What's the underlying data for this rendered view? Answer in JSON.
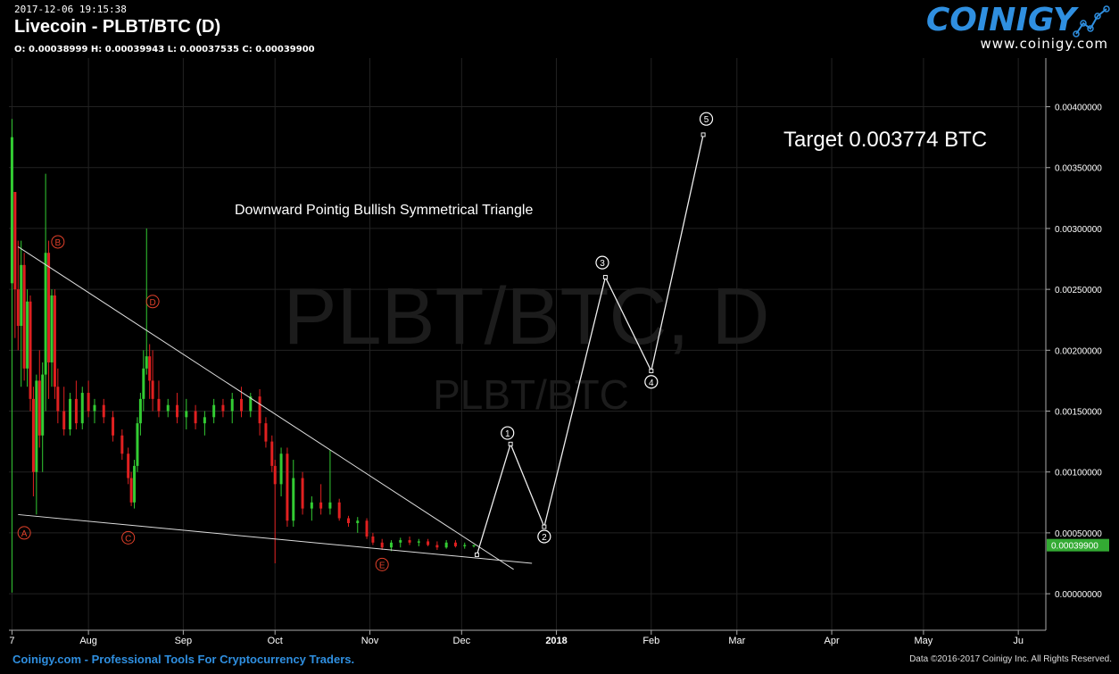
{
  "header": {
    "timestamp": "2017-12-06 19:15:38",
    "title": "Livecoin - PLBT/BTC (D)",
    "ohlc": "O: 0.00038999 H: 0.00039943 L: 0.00037535 C: 0.00039900"
  },
  "brand": {
    "name": "COINIGY",
    "url": "www.coinigy.com"
  },
  "watermark": {
    "large": "PLBT/BTC, D",
    "small": "PLBT/BTC"
  },
  "footer": {
    "left": "Coinigy.com - Professional Tools For Cryptocurrency Traders.",
    "right": "Data ©2016-2017 Coinigy Inc. All Rights Reserved."
  },
  "colors": {
    "background": "#000000",
    "up": "#33cc33",
    "down": "#e02020",
    "grid": "#222222",
    "annotation": "#ffffff",
    "wave_label": "#e0402a",
    "price_badge": "#33aa33",
    "brand": "#2f8fe0"
  },
  "chart_data": {
    "type": "candlestick",
    "title": "Downward Pointig Bullish Symmetrical Triangle",
    "target_label": "Target 0.003774 BTC",
    "current_price_label": "0.00039900",
    "x_ticks": [
      "7",
      "Aug",
      "Sep",
      "Oct",
      "Nov",
      "Dec",
      "2018",
      "Feb",
      "Mar",
      "Apr",
      "May",
      "Ju"
    ],
    "y_ticks": [
      "0.00400000",
      "0.00350000",
      "0.00300000",
      "0.00250000",
      "0.00200000",
      "0.00150000",
      "0.00100000",
      "0.00050000",
      "0.00000000"
    ],
    "ylim": [
      -0.0003,
      0.0044
    ],
    "xlim": [
      "2017-07-06",
      "2018-06-10"
    ],
    "candles": [
      {
        "date": "2017-07-07",
        "o": 0.00255,
        "h": 0.0039,
        "l": 1e-05,
        "c": 0.00375
      },
      {
        "date": "2017-07-08",
        "o": 0.0033,
        "h": 0.0033,
        "l": 0.0021,
        "c": 0.0025
      },
      {
        "date": "2017-07-09",
        "o": 0.0025,
        "h": 0.0029,
        "l": 0.002,
        "c": 0.0022
      },
      {
        "date": "2017-07-10",
        "o": 0.0022,
        "h": 0.0029,
        "l": 0.0017,
        "c": 0.0027
      },
      {
        "date": "2017-07-11",
        "o": 0.0027,
        "h": 0.0028,
        "l": 0.00175,
        "c": 0.00185
      },
      {
        "date": "2017-07-12",
        "o": 0.00185,
        "h": 0.0025,
        "l": 0.0017,
        "c": 0.0024
      },
      {
        "date": "2017-07-13",
        "o": 0.0024,
        "h": 0.00245,
        "l": 0.0015,
        "c": 0.0016
      },
      {
        "date": "2017-07-14",
        "o": 0.0016,
        "h": 0.0017,
        "l": 0.0008,
        "c": 0.001
      },
      {
        "date": "2017-07-15",
        "o": 0.001,
        "h": 0.0018,
        "l": 0.00065,
        "c": 0.00175
      },
      {
        "date": "2017-07-16",
        "o": 0.00175,
        "h": 0.002,
        "l": 0.0012,
        "c": 0.0013
      },
      {
        "date": "2017-07-17",
        "o": 0.0013,
        "h": 0.0019,
        "l": 0.001,
        "c": 0.0018
      },
      {
        "date": "2017-07-18",
        "o": 0.0018,
        "h": 0.00345,
        "l": 0.0015,
        "c": 0.0028
      },
      {
        "date": "2017-07-19",
        "o": 0.0028,
        "h": 0.0029,
        "l": 0.0016,
        "c": 0.0019
      },
      {
        "date": "2017-07-20",
        "o": 0.0019,
        "h": 0.0025,
        "l": 0.0017,
        "c": 0.00245
      },
      {
        "date": "2017-07-21",
        "o": 0.00245,
        "h": 0.0025,
        "l": 0.0016,
        "c": 0.0017
      },
      {
        "date": "2017-07-22",
        "o": 0.0017,
        "h": 0.00185,
        "l": 0.0014,
        "c": 0.0015
      },
      {
        "date": "2017-07-24",
        "o": 0.0015,
        "h": 0.0017,
        "l": 0.0013,
        "c": 0.00135
      },
      {
        "date": "2017-07-26",
        "o": 0.00135,
        "h": 0.00165,
        "l": 0.0013,
        "c": 0.0016
      },
      {
        "date": "2017-07-28",
        "o": 0.0016,
        "h": 0.00175,
        "l": 0.00135,
        "c": 0.0014
      },
      {
        "date": "2017-07-30",
        "o": 0.0014,
        "h": 0.0017,
        "l": 0.00135,
        "c": 0.00165
      },
      {
        "date": "2017-08-01",
        "o": 0.00165,
        "h": 0.00175,
        "l": 0.00145,
        "c": 0.0015
      },
      {
        "date": "2017-08-03",
        "o": 0.0015,
        "h": 0.0016,
        "l": 0.0014,
        "c": 0.00155
      },
      {
        "date": "2017-08-06",
        "o": 0.00155,
        "h": 0.0016,
        "l": 0.0014,
        "c": 0.00145
      },
      {
        "date": "2017-08-09",
        "o": 0.00145,
        "h": 0.0015,
        "l": 0.00125,
        "c": 0.0013
      },
      {
        "date": "2017-08-12",
        "o": 0.0013,
        "h": 0.00135,
        "l": 0.0011,
        "c": 0.00115
      },
      {
        "date": "2017-08-14",
        "o": 0.00115,
        "h": 0.0012,
        "l": 0.0009,
        "c": 0.00095
      },
      {
        "date": "2017-08-15",
        "o": 0.00095,
        "h": 0.001,
        "l": 0.00072,
        "c": 0.00075
      },
      {
        "date": "2017-08-16",
        "o": 0.00075,
        "h": 0.0011,
        "l": 0.0007,
        "c": 0.00105
      },
      {
        "date": "2017-08-17",
        "o": 0.00105,
        "h": 0.00145,
        "l": 0.001,
        "c": 0.0014
      },
      {
        "date": "2017-08-18",
        "o": 0.0014,
        "h": 0.00165,
        "l": 0.0013,
        "c": 0.0016
      },
      {
        "date": "2017-08-19",
        "o": 0.0016,
        "h": 0.002,
        "l": 0.0015,
        "c": 0.00185
      },
      {
        "date": "2017-08-20",
        "o": 0.00185,
        "h": 0.003,
        "l": 0.0018,
        "c": 0.00195
      },
      {
        "date": "2017-08-21",
        "o": 0.00195,
        "h": 0.00205,
        "l": 0.0016,
        "c": 0.00175
      },
      {
        "date": "2017-08-22",
        "o": 0.00175,
        "h": 0.002,
        "l": 0.0015,
        "c": 0.0016
      },
      {
        "date": "2017-08-24",
        "o": 0.0016,
        "h": 0.00175,
        "l": 0.00145,
        "c": 0.0015
      },
      {
        "date": "2017-08-27",
        "o": 0.0015,
        "h": 0.0016,
        "l": 0.00145,
        "c": 0.00155
      },
      {
        "date": "2017-08-30",
        "o": 0.00155,
        "h": 0.00165,
        "l": 0.0014,
        "c": 0.00145
      },
      {
        "date": "2017-09-02",
        "o": 0.00145,
        "h": 0.0016,
        "l": 0.00135,
        "c": 0.0015
      },
      {
        "date": "2017-09-05",
        "o": 0.0015,
        "h": 0.00155,
        "l": 0.00135,
        "c": 0.0014
      },
      {
        "date": "2017-09-08",
        "o": 0.0014,
        "h": 0.0015,
        "l": 0.0013,
        "c": 0.00145
      },
      {
        "date": "2017-09-11",
        "o": 0.00145,
        "h": 0.0016,
        "l": 0.0014,
        "c": 0.00155
      },
      {
        "date": "2017-09-14",
        "o": 0.00155,
        "h": 0.0016,
        "l": 0.00145,
        "c": 0.0015
      },
      {
        "date": "2017-09-17",
        "o": 0.0015,
        "h": 0.00165,
        "l": 0.0014,
        "c": 0.0016
      },
      {
        "date": "2017-09-20",
        "o": 0.0016,
        "h": 0.0017,
        "l": 0.00145,
        "c": 0.0015
      },
      {
        "date": "2017-09-23",
        "o": 0.0015,
        "h": 0.00165,
        "l": 0.00145,
        "c": 0.00162
      },
      {
        "date": "2017-09-26",
        "o": 0.00162,
        "h": 0.00168,
        "l": 0.0013,
        "c": 0.0014
      },
      {
        "date": "2017-09-28",
        "o": 0.0014,
        "h": 0.00145,
        "l": 0.0012,
        "c": 0.00125
      },
      {
        "date": "2017-09-30",
        "o": 0.00125,
        "h": 0.0013,
        "l": 0.001,
        "c": 0.00105
      },
      {
        "date": "2017-10-01",
        "o": 0.00105,
        "h": 0.0011,
        "l": 0.00025,
        "c": 0.0009
      },
      {
        "date": "2017-10-03",
        "o": 0.0009,
        "h": 0.0012,
        "l": 0.0008,
        "c": 0.00115
      },
      {
        "date": "2017-10-05",
        "o": 0.00115,
        "h": 0.0012,
        "l": 0.00055,
        "c": 0.0006
      },
      {
        "date": "2017-10-07",
        "o": 0.0006,
        "h": 0.0011,
        "l": 0.00055,
        "c": 0.00095
      },
      {
        "date": "2017-10-10",
        "o": 0.00095,
        "h": 0.001,
        "l": 0.00065,
        "c": 0.0007
      },
      {
        "date": "2017-10-13",
        "o": 0.0007,
        "h": 0.0008,
        "l": 0.0006,
        "c": 0.00075
      },
      {
        "date": "2017-10-16",
        "o": 0.00075,
        "h": 0.0009,
        "l": 0.00065,
        "c": 0.0007
      },
      {
        "date": "2017-10-19",
        "o": 0.0007,
        "h": 0.00118,
        "l": 0.00065,
        "c": 0.00075
      },
      {
        "date": "2017-10-22",
        "o": 0.00075,
        "h": 0.00078,
        "l": 0.0006,
        "c": 0.00062
      },
      {
        "date": "2017-10-25",
        "o": 0.00062,
        "h": 0.00064,
        "l": 0.00055,
        "c": 0.00058
      },
      {
        "date": "2017-10-28",
        "o": 0.00058,
        "h": 0.00063,
        "l": 0.0005,
        "c": 0.0006
      },
      {
        "date": "2017-10-31",
        "o": 0.0006,
        "h": 0.00062,
        "l": 0.00045,
        "c": 0.00047
      },
      {
        "date": "2017-11-02",
        "o": 0.00047,
        "h": 0.0005,
        "l": 0.0004,
        "c": 0.00042
      },
      {
        "date": "2017-11-05",
        "o": 0.00042,
        "h": 0.00045,
        "l": 0.00036,
        "c": 0.00038
      },
      {
        "date": "2017-11-08",
        "o": 0.00038,
        "h": 0.00044,
        "l": 0.00035,
        "c": 0.00042
      },
      {
        "date": "2017-11-11",
        "o": 0.00042,
        "h": 0.00046,
        "l": 0.00038,
        "c": 0.00044
      },
      {
        "date": "2017-11-14",
        "o": 0.00044,
        "h": 0.00047,
        "l": 0.0004,
        "c": 0.00042
      },
      {
        "date": "2017-11-17",
        "o": 0.00042,
        "h": 0.00045,
        "l": 0.00039,
        "c": 0.00043
      },
      {
        "date": "2017-11-20",
        "o": 0.00043,
        "h": 0.00045,
        "l": 0.00039,
        "c": 0.0004
      },
      {
        "date": "2017-11-23",
        "o": 0.0004,
        "h": 0.00043,
        "l": 0.00036,
        "c": 0.00038
      },
      {
        "date": "2017-11-26",
        "o": 0.00038,
        "h": 0.00044,
        "l": 0.00037,
        "c": 0.00042
      },
      {
        "date": "2017-11-29",
        "o": 0.00042,
        "h": 0.00044,
        "l": 0.00038,
        "c": 0.00039
      },
      {
        "date": "2017-12-02",
        "o": 0.00039,
        "h": 0.00042,
        "l": 0.00037,
        "c": 0.0004
      },
      {
        "date": "2017-12-05",
        "o": 0.00039,
        "h": 0.0004,
        "l": 0.00038,
        "c": 0.0004
      }
    ],
    "trendlines": [
      {
        "name": "upper",
        "points": [
          {
            "date": "2017-07-09",
            "value": 0.00285
          },
          {
            "date": "2017-12-18",
            "value": 0.0002
          }
        ]
      },
      {
        "name": "lower",
        "points": [
          {
            "date": "2017-07-09",
            "value": 0.00065
          },
          {
            "date": "2017-12-24",
            "value": 0.00025
          }
        ]
      }
    ],
    "wave_labels": [
      {
        "label": "A",
        "date": "2017-07-11",
        "value": 0.0005
      },
      {
        "label": "B",
        "date": "2017-07-22",
        "value": 0.00289
      },
      {
        "label": "C",
        "date": "2017-08-14",
        "value": 0.00046
      },
      {
        "label": "D",
        "date": "2017-08-22",
        "value": 0.0024
      },
      {
        "label": "E",
        "date": "2017-11-05",
        "value": 0.00024
      }
    ],
    "projection": {
      "points": [
        {
          "date": "2017-12-06",
          "value": 0.00032
        },
        {
          "date": "2017-12-17",
          "value": 0.00123
        },
        {
          "date": "2017-12-28",
          "value": 0.00055
        },
        {
          "date": "2018-01-17",
          "value": 0.0026
        },
        {
          "date": "2018-02-01",
          "value": 0.00183
        },
        {
          "date": "2018-02-18",
          "value": 0.00377
        }
      ],
      "labels": [
        {
          "label": "1",
          "date": "2017-12-16",
          "value": 0.00132
        },
        {
          "label": "2",
          "date": "2017-12-28",
          "value": 0.00047
        },
        {
          "label": "3",
          "date": "2018-01-16",
          "value": 0.00272
        },
        {
          "label": "4",
          "date": "2018-02-01",
          "value": 0.00174
        },
        {
          "label": "5",
          "date": "2018-02-19",
          "value": 0.0039
        }
      ]
    }
  }
}
